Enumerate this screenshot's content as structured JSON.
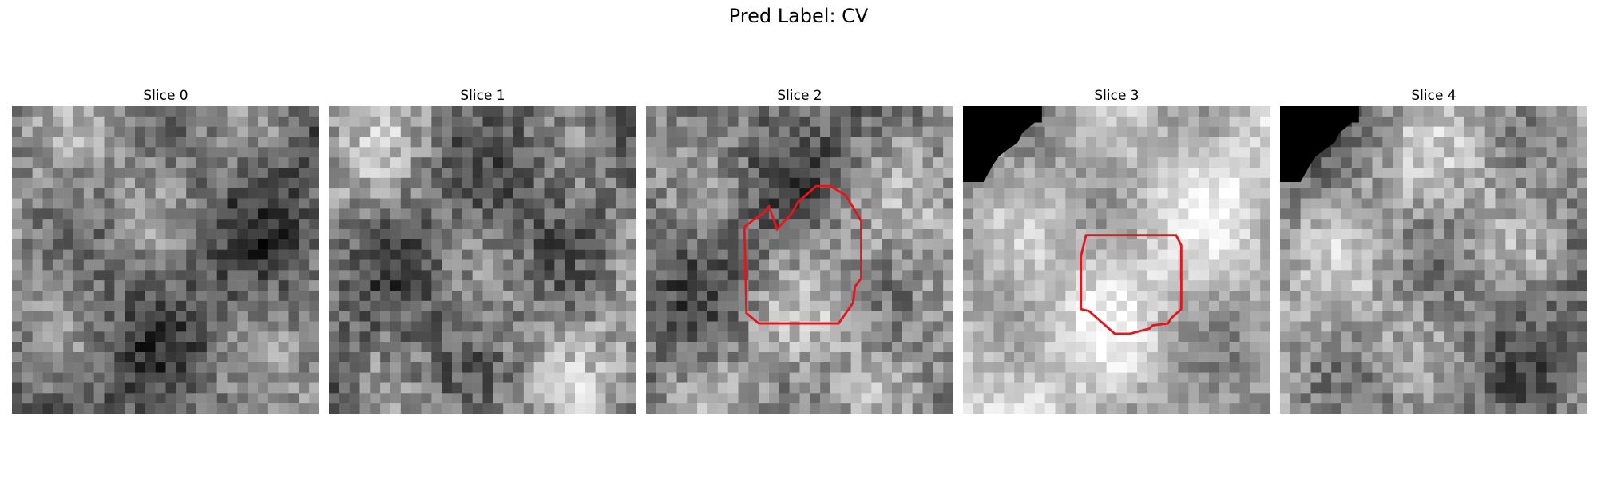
{
  "figure": {
    "title": "Pred Label: CV"
  },
  "panels": [
    {
      "title": "Slice 0",
      "seed": 11,
      "base": 0.46,
      "contrast": 0.55,
      "corner_mask": false,
      "contour": false
    },
    {
      "title": "Slice 1",
      "seed": 23,
      "base": 0.5,
      "contrast": 0.6,
      "corner_mask": false,
      "contour": false
    },
    {
      "title": "Slice 2",
      "seed": 37,
      "base": 0.52,
      "contrast": 0.6,
      "corner_mask": false,
      "contour": true
    },
    {
      "title": "Slice 3",
      "seed": 41,
      "base": 0.7,
      "contrast": 0.4,
      "corner_mask": true,
      "contour": true
    },
    {
      "title": "Slice 4",
      "seed": 53,
      "base": 0.55,
      "contrast": 0.55,
      "corner_mask": true,
      "contour": false
    }
  ],
  "colors": {
    "contour": "#e8141b",
    "background": "#ffffff"
  }
}
